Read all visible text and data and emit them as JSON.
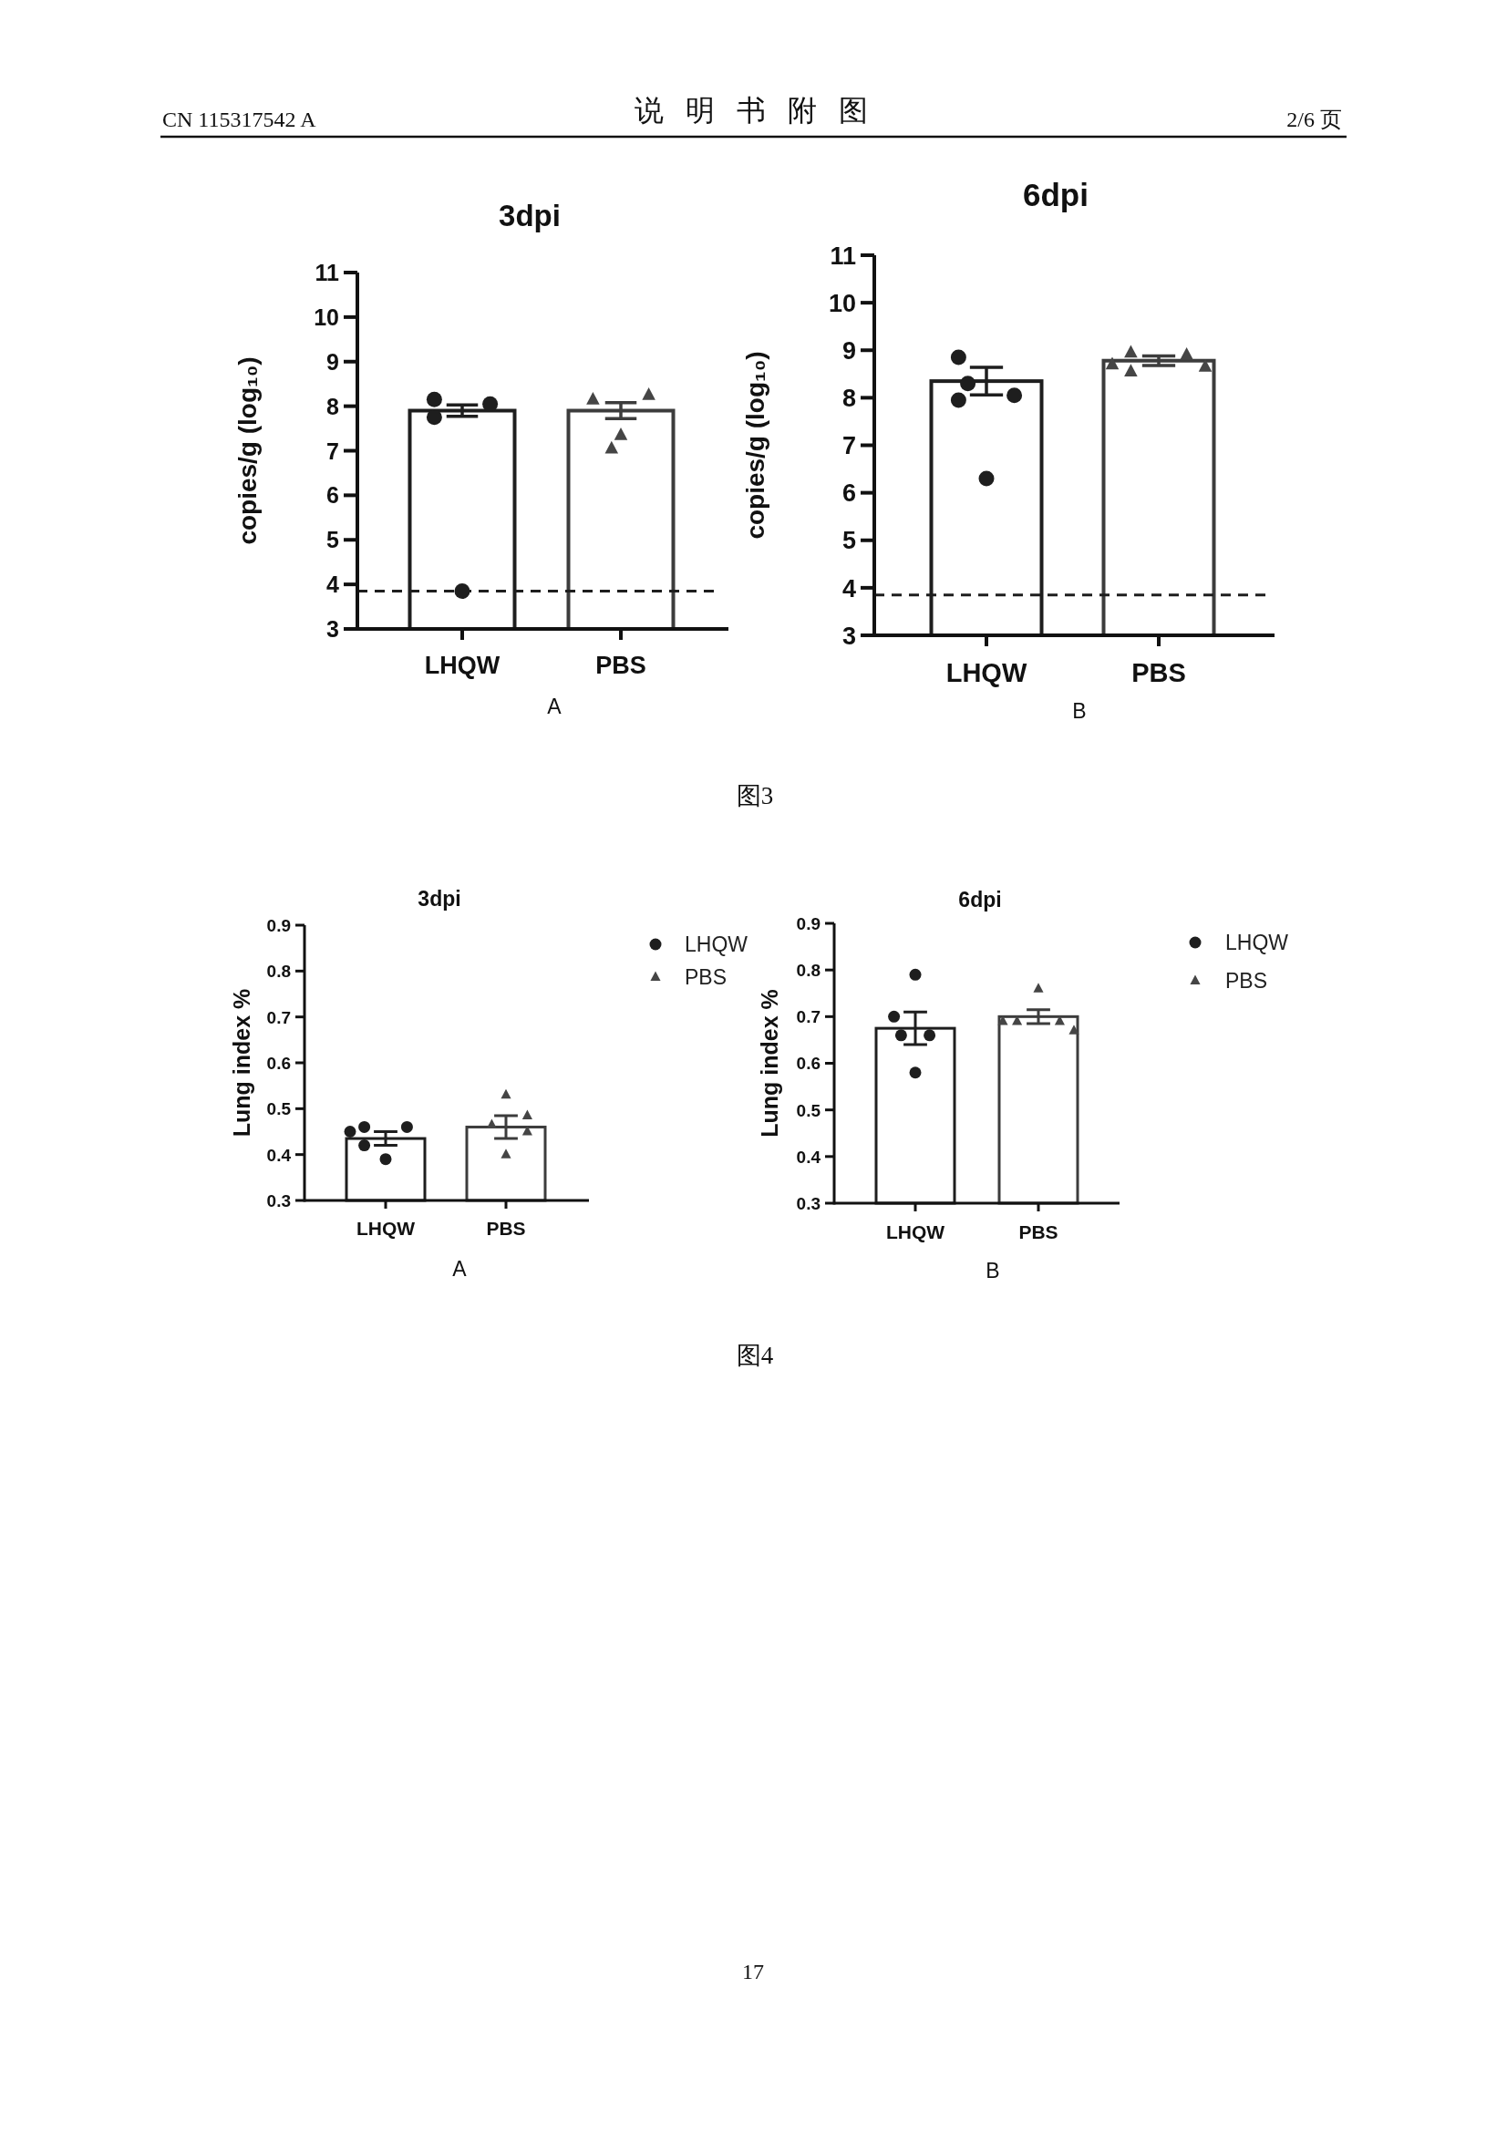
{
  "chart_data": [
    {
      "type": "bar",
      "title": "3dpi",
      "ylabel": "copies/g (log₁₀)",
      "categories": [
        "LHQW",
        "PBS"
      ],
      "ylim": [
        3,
        11
      ],
      "yticks": [
        3,
        4,
        5,
        6,
        7,
        8,
        9,
        10,
        11
      ],
      "series": [
        {
          "type": "bar",
          "colors": [
            "#1e1e1e",
            "#3c3c3c"
          ],
          "values": [
            7.9,
            7.9
          ],
          "errors": [
            0.13,
            0.18
          ]
        },
        {
          "type": "scatter",
          "marker": "circle",
          "color": "#1e1e1e",
          "x": [
            "LHQW",
            "LHQW",
            "LHQW",
            "LHQW"
          ],
          "values": [
            8.15,
            8.05,
            3.85,
            7.75
          ]
        },
        {
          "type": "scatter",
          "marker": "triangle",
          "color": "#454545",
          "x": [
            "PBS",
            "PBS",
            "PBS",
            "PBS"
          ],
          "values": [
            8.15,
            8.25,
            7.35,
            7.05
          ]
        }
      ],
      "ref_lines": [
        {
          "axis": "y",
          "value": 3.85,
          "line_style": "dashed",
          "color": "#1e1e1e"
        }
      ],
      "annotations": [
        "CN 115317542 A",
        "说 明 书 附 图",
        "2/6 页",
        "A",
        "图3"
      ]
    },
    {
      "type": "bar",
      "title": "6dpi",
      "ylabel": "copies/g (log₁₀)",
      "categories": [
        "LHQW",
        "PBS"
      ],
      "ylim": [
        3,
        11
      ],
      "yticks": [
        3,
        4,
        5,
        6,
        7,
        8,
        9,
        10,
        11
      ],
      "series": [
        {
          "type": "bar",
          "colors": [
            "#1e1e1e",
            "#3c3c3c"
          ],
          "values": [
            8.35,
            8.78
          ],
          "errors": [
            0.29,
            0.1
          ]
        },
        {
          "type": "scatter",
          "marker": "circle",
          "color": "#1e1e1e",
          "x": [
            "LHQW",
            "LHQW",
            "LHQW",
            "LHQW",
            "LHQW"
          ],
          "values": [
            8.3,
            8.85,
            8.05,
            6.3,
            7.95
          ]
        },
        {
          "type": "scatter",
          "marker": "triangle",
          "color": "#454545",
          "x": [
            "PBS",
            "PBS",
            "PBS",
            "PBS",
            "PBS"
          ],
          "values": [
            8.95,
            8.9,
            8.7,
            8.65,
            8.55
          ]
        }
      ],
      "ref_lines": [
        {
          "axis": "y",
          "value": 3.85,
          "line_style": "dashed",
          "color": "#1e1e1e"
        }
      ],
      "annotations": [
        "B"
      ]
    },
    {
      "type": "bar",
      "title": "3dpi",
      "ylabel": "Lung index %",
      "categories": [
        "LHQW",
        "PBS"
      ],
      "ylim": [
        0.3,
        0.9
      ],
      "yticks": [
        0.3,
        0.4,
        0.5,
        0.6,
        0.7,
        0.8,
        0.9
      ],
      "series": [
        {
          "type": "bar",
          "colors": [
            "#1e1e1e",
            "#3c3c3c"
          ],
          "values": [
            0.435,
            0.46
          ],
          "errors": [
            0.015,
            0.025
          ]
        },
        {
          "type": "scatter",
          "name": "LHQW",
          "marker": "circle",
          "color": "#1e1e1e",
          "x": [
            "LHQW",
            "LHQW",
            "LHQW",
            "LHQW",
            "LHQW"
          ],
          "values": [
            0.46,
            0.42,
            0.46,
            0.39,
            0.45
          ]
        },
        {
          "type": "scatter",
          "name": "PBS",
          "marker": "triangle",
          "color": "#454545",
          "x": [
            "PBS",
            "PBS",
            "PBS",
            "PBS",
            "PBS"
          ],
          "values": [
            0.465,
            0.53,
            0.485,
            0.4,
            0.45
          ]
        }
      ],
      "legend": "top right",
      "annotations": [
        "A",
        "图4"
      ]
    },
    {
      "type": "bar",
      "title": "6dpi",
      "ylabel": "Lung index %",
      "categories": [
        "LHQW",
        "PBS"
      ],
      "ylim": [
        0.3,
        0.9
      ],
      "yticks": [
        0.3,
        0.4,
        0.5,
        0.6,
        0.7,
        0.8,
        0.9
      ],
      "series": [
        {
          "type": "bar",
          "colors": [
            "#1e1e1e",
            "#3c3c3c"
          ],
          "values": [
            0.675,
            0.7
          ],
          "errors": [
            0.035,
            0.015
          ]
        },
        {
          "type": "scatter",
          "name": "LHQW",
          "marker": "circle",
          "color": "#1e1e1e",
          "x": [
            "LHQW",
            "LHQW",
            "LHQW",
            "LHQW",
            "LHQW"
          ],
          "values": [
            0.66,
            0.79,
            0.7,
            0.58,
            0.66
          ]
        },
        {
          "type": "scatter",
          "name": "PBS",
          "marker": "triangle",
          "color": "#454545",
          "x": [
            "PBS",
            "PBS",
            "PBS",
            "PBS",
            "PBS"
          ],
          "values": [
            0.69,
            0.69,
            0.76,
            0.69,
            0.67
          ]
        }
      ],
      "legend": "top right",
      "annotations": [
        "B",
        "17"
      ]
    }
  ]
}
